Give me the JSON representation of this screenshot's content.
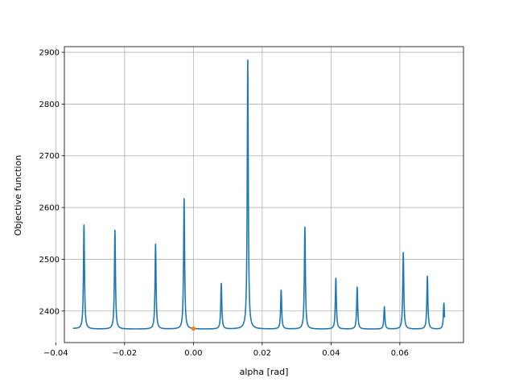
{
  "chart_data": {
    "type": "line",
    "title": "",
    "xlabel": "alpha [rad]",
    "ylabel": "Objective function",
    "xlim": [
      -0.0375,
      0.0785
    ],
    "ylim": [
      2339,
      2911
    ],
    "grid": true,
    "x_ticks": [
      -0.04,
      -0.02,
      0.0,
      0.02,
      0.04,
      0.06
    ],
    "x_tick_labels": [
      "−0.04",
      "−0.02",
      "0.00",
      "0.02",
      "0.04",
      "0.06"
    ],
    "y_ticks": [
      2400,
      2500,
      2600,
      2700,
      2800,
      2900
    ],
    "y_tick_labels": [
      "2400",
      "2500",
      "2600",
      "2700",
      "2800",
      "2900"
    ],
    "line_color": "#1f77b4",
    "marker_color": "#ff7f0e",
    "baseline": {
      "x_start": -0.035,
      "x_end": 0.073,
      "floor": 2365,
      "start_value": 2366
    },
    "peaks": [
      {
        "x": -0.0318,
        "y": 2566
      },
      {
        "x": -0.0228,
        "y": 2556
      },
      {
        "x": -0.011,
        "y": 2529
      },
      {
        "x": -0.0027,
        "y": 2617
      },
      {
        "x": 0.0081,
        "y": 2453
      },
      {
        "x": 0.0158,
        "y": 2885
      },
      {
        "x": 0.0255,
        "y": 2440
      },
      {
        "x": 0.0324,
        "y": 2562
      },
      {
        "x": 0.0414,
        "y": 2463
      },
      {
        "x": 0.0476,
        "y": 2446
      },
      {
        "x": 0.0555,
        "y": 2408
      },
      {
        "x": 0.061,
        "y": 2513
      },
      {
        "x": 0.068,
        "y": 2467
      },
      {
        "x": 0.0728,
        "y": 2415
      }
    ],
    "marker": {
      "x": 0.0,
      "y": 2366
    }
  }
}
